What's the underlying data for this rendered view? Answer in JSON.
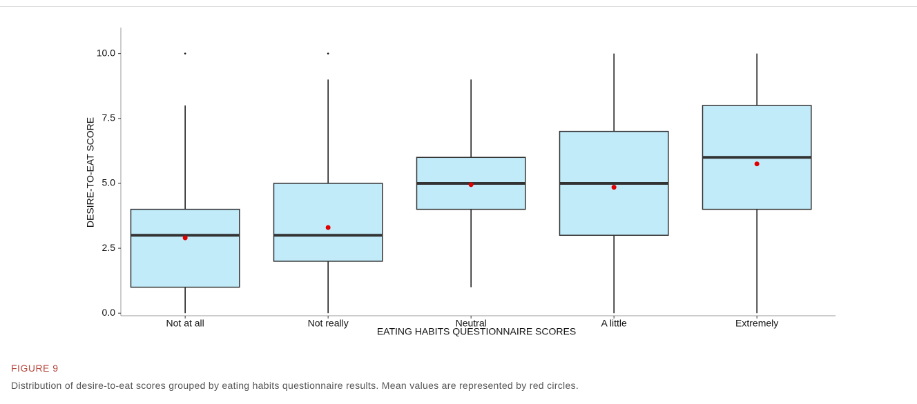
{
  "chart_data": {
    "type": "box",
    "x_label": "EATING HABITS QUESTIONNAIRE SCORES",
    "y_label": "DESIRE-TO-EAT SCORE",
    "categories": [
      "Not at all",
      "Not really",
      "Neutral",
      "A little",
      "Extremely"
    ],
    "whisker_low": [
      0,
      0,
      1,
      0,
      0
    ],
    "q1": [
      1,
      2,
      4,
      3,
      4
    ],
    "median": [
      3,
      3,
      5,
      5,
      6
    ],
    "q3": [
      4,
      5,
      6,
      7,
      8
    ],
    "whisker_high": [
      8,
      9,
      9,
      10,
      10
    ],
    "mean": [
      2.9,
      3.3,
      4.95,
      4.85,
      5.75
    ],
    "outliers": [
      [
        10
      ],
      [
        10
      ],
      [],
      [],
      []
    ],
    "box_color": "#c2ebfa",
    "mean_color": "#e00000",
    "ylim": [
      -0.1,
      11
    ],
    "yticks": [
      {
        "value": 0,
        "label": "0.0"
      },
      {
        "value": 2.5,
        "label": "2.5"
      },
      {
        "value": 5,
        "label": "5.0"
      },
      {
        "value": 7.5,
        "label": "7.5"
      },
      {
        "value": 10,
        "label": "10.0"
      }
    ]
  },
  "caption": {
    "label": "FIGURE 9",
    "text": "Distribution of desire-to-eat scores grouped by eating habits questionnaire results. Mean values are represented by red circles."
  }
}
